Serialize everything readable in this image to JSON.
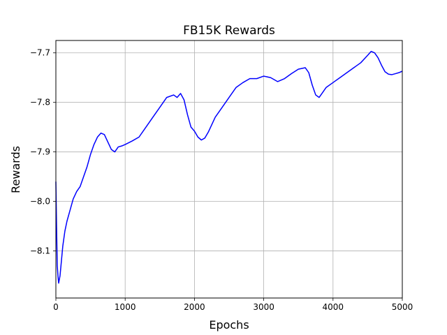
{
  "chart_data": {
    "type": "line",
    "title": "FB15K Rewards",
    "xlabel": "Epochs",
    "ylabel": "Rewards",
    "xlim": [
      0,
      5000
    ],
    "ylim": [
      -8.195,
      -7.675
    ],
    "x_ticks": [
      0,
      1000,
      2000,
      3000,
      4000,
      5000
    ],
    "y_ticks": [
      -8.1,
      -8.0,
      -7.9,
      -7.8,
      -7.7
    ],
    "x_tick_labels": [
      "0",
      "1000",
      "2000",
      "3000",
      "4000",
      "5000"
    ],
    "y_tick_labels": [
      "−8.1",
      "−8.0",
      "−7.9",
      "−7.8",
      "−7.7"
    ],
    "grid": true,
    "line_color": "#0000ff",
    "series": [
      {
        "x": [
          0,
          10,
          20,
          30,
          40,
          60,
          80,
          100,
          130,
          160,
          200,
          250,
          300,
          350,
          400,
          450,
          500,
          550,
          600,
          650,
          700,
          750,
          800,
          850,
          900,
          950,
          1000,
          1100,
          1200,
          1300,
          1400,
          1500,
          1600,
          1700,
          1750,
          1800,
          1850,
          1900,
          1950,
          2000,
          2050,
          2100,
          2150,
          2200,
          2300,
          2400,
          2500,
          2600,
          2700,
          2800,
          2900,
          3000,
          3100,
          3200,
          3300,
          3400,
          3500,
          3600,
          3650,
          3700,
          3750,
          3800,
          3850,
          3900,
          4000,
          4100,
          4200,
          4300,
          4400,
          4500,
          4550,
          4600,
          4650,
          4700,
          4750,
          4800,
          4850,
          4900,
          4950,
          5000
        ],
        "y": [
          -7.96,
          -8.05,
          -8.13,
          -8.15,
          -8.165,
          -8.15,
          -8.12,
          -8.09,
          -8.06,
          -8.04,
          -8.02,
          -7.995,
          -7.98,
          -7.97,
          -7.95,
          -7.93,
          -7.905,
          -7.885,
          -7.87,
          -7.862,
          -7.865,
          -7.88,
          -7.895,
          -7.9,
          -7.89,
          -7.888,
          -7.885,
          -7.878,
          -7.87,
          -7.85,
          -7.83,
          -7.81,
          -7.79,
          -7.785,
          -7.79,
          -7.782,
          -7.795,
          -7.825,
          -7.85,
          -7.858,
          -7.87,
          -7.876,
          -7.872,
          -7.86,
          -7.83,
          -7.81,
          -7.79,
          -7.77,
          -7.76,
          -7.752,
          -7.752,
          -7.747,
          -7.75,
          -7.758,
          -7.752,
          -7.742,
          -7.733,
          -7.73,
          -7.74,
          -7.765,
          -7.785,
          -7.79,
          -7.78,
          -7.77,
          -7.76,
          -7.75,
          -7.74,
          -7.73,
          -7.72,
          -7.705,
          -7.697,
          -7.7,
          -7.71,
          -7.725,
          -7.738,
          -7.743,
          -7.744,
          -7.742,
          -7.74,
          -7.737
        ]
      }
    ]
  }
}
